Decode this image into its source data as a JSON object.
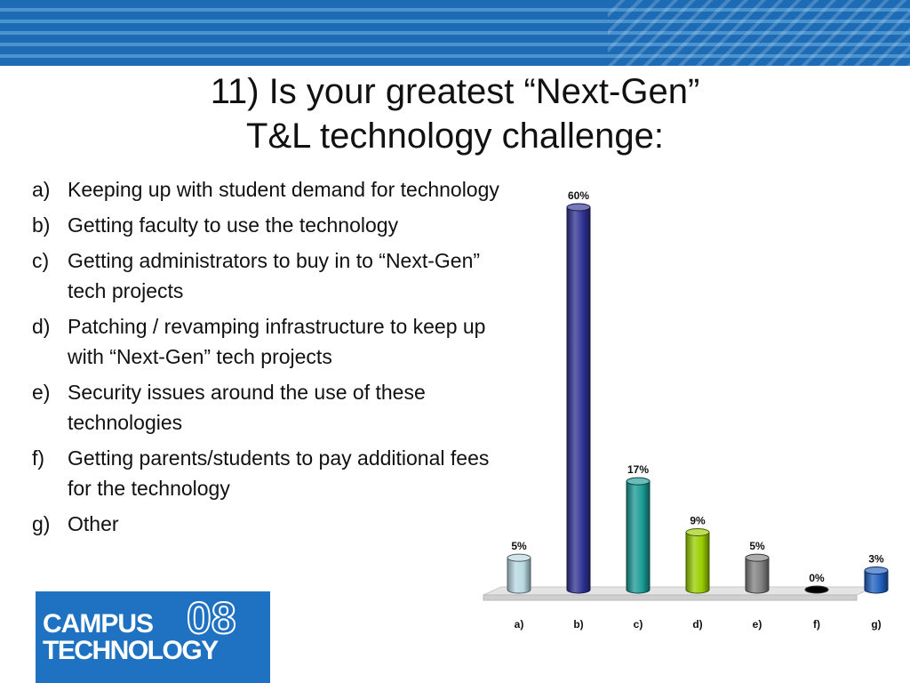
{
  "slide": {
    "title_line1": "11) Is your greatest “Next-Gen”",
    "title_line2": "T&L technology challenge:",
    "options": [
      {
        "letter": "a)",
        "text": "Keeping up with student demand for technology"
      },
      {
        "letter": "b)",
        "text": "Getting faculty to use the technology"
      },
      {
        "letter": "c)",
        "text": "Getting administrators to buy in to “Next-Gen” tech projects"
      },
      {
        "letter": "d)",
        "text": "Patching / revamping infrastructure to keep up with “Next-Gen” tech projects"
      },
      {
        "letter": "e)",
        "text": "Security issues around the use of these technologies"
      },
      {
        "letter": "f)",
        "text": "Getting parents/students to pay additional fees for the technology"
      },
      {
        "letter": "g)",
        "text": "Other"
      }
    ]
  },
  "logo": {
    "line1": "CAMPUS",
    "line2": "TECHNOLOGY",
    "year": "08"
  },
  "colors": {
    "banner": "#1d6bb4",
    "bars": [
      "#b8d8e0",
      "#2e3192",
      "#1a9a94",
      "#99cc00",
      "#808080",
      "#000000",
      "#1f5fbf"
    ]
  },
  "chart_data": {
    "type": "bar",
    "style": "3d-cylinder",
    "categories": [
      "a)",
      "b)",
      "c)",
      "d)",
      "e)",
      "f)",
      "g)"
    ],
    "values": [
      5,
      60,
      17,
      9,
      5,
      0,
      3
    ],
    "value_labels": [
      "5%",
      "60%",
      "17%",
      "9%",
      "5%",
      "0%",
      "3%"
    ],
    "ylim": [
      0,
      60
    ],
    "grid": false,
    "legend": "none"
  }
}
